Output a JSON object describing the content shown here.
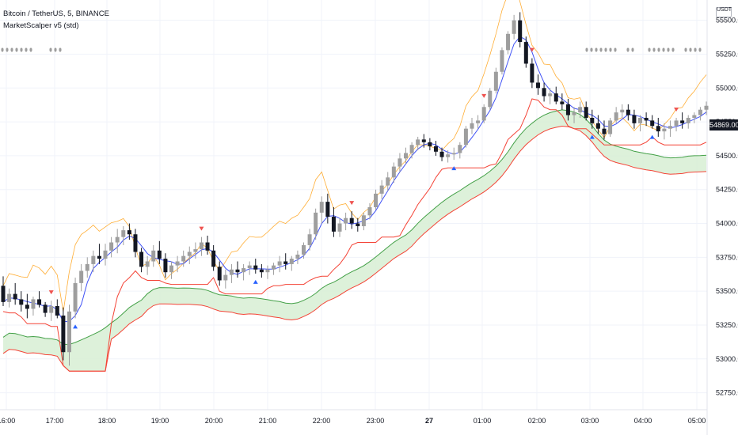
{
  "header": {
    "symbol_line": "Bitcoin / TetherUS, 5, BINANCE",
    "indicator_line": "MarketScalper v5 (std)"
  },
  "currency_button": "USDT",
  "last_price_label": "54869.00",
  "chart_data": {
    "type": "candlestick",
    "symbol": "Bitcoin / TetherUS",
    "interval": "5",
    "exchange": "BINANCE",
    "indicator": "MarketScalper v5 (std)",
    "y_ticks": [
      "55500.00",
      "55250.00",
      "55000.00",
      "54750.00",
      "54500.00",
      "54250.00",
      "54000.00",
      "53750.00",
      "53500.00",
      "53250.00",
      "53000.00",
      "52750.00"
    ],
    "y_tick_values": [
      55500,
      55250,
      55000,
      54750,
      54500,
      54250,
      54000,
      53750,
      53500,
      53250,
      53000,
      52750
    ],
    "ylim": [
      52625,
      55650
    ],
    "x_ticks": [
      "16:00",
      "17:00",
      "18:00",
      "19:00",
      "20:00",
      "21:00",
      "22:00",
      "23:00",
      "27",
      "01:00",
      "02:00",
      "03:00",
      "04:00",
      "05:00"
    ],
    "bar_minutes": 5,
    "last_price": 54869,
    "ohlc_samples": [
      [
        53540,
        53610,
        53390,
        53420
      ],
      [
        53420,
        53520,
        53380,
        53480
      ],
      [
        53480,
        53560,
        53400,
        53440
      ],
      [
        53440,
        53500,
        53350,
        53400
      ],
      [
        53400,
        53480,
        53300,
        53370
      ],
      [
        53370,
        53460,
        53320,
        53440
      ],
      [
        53440,
        53500,
        53380,
        53400
      ],
      [
        53400,
        53420,
        53310,
        53340
      ],
      [
        53340,
        53430,
        53280,
        53390
      ],
      [
        53390,
        53440,
        53300,
        53320
      ],
      [
        53320,
        53380,
        52990,
        53050
      ],
      [
        53050,
        53400,
        52950,
        53350
      ],
      [
        53350,
        53600,
        53300,
        53560
      ],
      [
        53560,
        53700,
        53500,
        53650
      ],
      [
        53650,
        53750,
        53600,
        53700
      ],
      [
        53700,
        53800,
        53640,
        53760
      ],
      [
        53760,
        53850,
        53700,
        53740
      ],
      [
        53740,
        53850,
        53690,
        53800
      ],
      [
        53800,
        53900,
        53750,
        53860
      ],
      [
        53860,
        53960,
        53780,
        53900
      ],
      [
        53900,
        53980,
        53840,
        53950
      ],
      [
        53950,
        54000,
        53880,
        53920
      ],
      [
        53920,
        53960,
        53750,
        53790
      ],
      [
        53790,
        53820,
        53640,
        53680
      ],
      [
        53680,
        53760,
        53620,
        53720
      ],
      [
        53720,
        53840,
        53680,
        53800
      ],
      [
        53800,
        53870,
        53700,
        53740
      ],
      [
        53740,
        53780,
        53600,
        53640
      ],
      [
        53640,
        53720,
        53590,
        53690
      ],
      [
        53690,
        53760,
        53640,
        53720
      ],
      [
        53720,
        53800,
        53680,
        53760
      ],
      [
        53760,
        53830,
        53700,
        53790
      ],
      [
        53790,
        53860,
        53740,
        53810
      ],
      [
        53810,
        53900,
        53760,
        53860
      ],
      [
        53860,
        53910,
        53770,
        53800
      ],
      [
        53800,
        53840,
        53650,
        53680
      ],
      [
        53680,
        53720,
        53540,
        53580
      ],
      [
        53580,
        53660,
        53520,
        53620
      ],
      [
        53620,
        53700,
        53560,
        53660
      ],
      [
        53660,
        53720,
        53600,
        53640
      ],
      [
        53640,
        53700,
        53580,
        53670
      ],
      [
        53670,
        53720,
        53620,
        53690
      ],
      [
        53690,
        53740,
        53630,
        53660
      ],
      [
        53660,
        53700,
        53600,
        53640
      ],
      [
        53640,
        53690,
        53590,
        53660
      ],
      [
        53660,
        53710,
        53620,
        53690
      ],
      [
        53690,
        53760,
        53640,
        53720
      ],
      [
        53720,
        53780,
        53660,
        53700
      ],
      [
        53700,
        53760,
        53650,
        53740
      ],
      [
        53740,
        53800,
        53700,
        53770
      ],
      [
        53770,
        53860,
        53740,
        53840
      ],
      [
        53840,
        53960,
        53800,
        53920
      ],
      [
        53920,
        54110,
        53880,
        54080
      ],
      [
        54080,
        54200,
        54000,
        54160
      ],
      [
        54160,
        54220,
        54000,
        54050
      ],
      [
        54050,
        54120,
        53900,
        53940
      ],
      [
        53940,
        54040,
        53900,
        54000
      ],
      [
        54000,
        54080,
        53950,
        54040
      ],
      [
        54040,
        54090,
        53960,
        54000
      ],
      [
        54000,
        54040,
        53940,
        53980
      ],
      [
        53980,
        54080,
        53950,
        54060
      ],
      [
        54060,
        54150,
        54030,
        54120
      ],
      [
        54120,
        54250,
        54100,
        54220
      ],
      [
        54220,
        54320,
        54180,
        54280
      ],
      [
        54280,
        54380,
        54240,
        54340
      ],
      [
        54340,
        54450,
        54300,
        54420
      ],
      [
        54420,
        54520,
        54380,
        54480
      ],
      [
        54480,
        54560,
        54440,
        54520
      ],
      [
        54520,
        54600,
        54480,
        54580
      ],
      [
        54580,
        54640,
        54540,
        54620
      ],
      [
        54620,
        54660,
        54560,
        54600
      ],
      [
        54600,
        54630,
        54540,
        54570
      ],
      [
        54570,
        54610,
        54500,
        54530
      ],
      [
        54530,
        54560,
        54460,
        54490
      ],
      [
        54490,
        54540,
        54450,
        54510
      ],
      [
        54510,
        54560,
        54470,
        54520
      ],
      [
        54520,
        54600,
        54480,
        54580
      ],
      [
        54580,
        54720,
        54560,
        54700
      ],
      [
        54700,
        54780,
        54660,
        54740
      ],
      [
        54740,
        54800,
        54700,
        54760
      ],
      [
        54760,
        54880,
        54740,
        54860
      ],
      [
        54860,
        55000,
        54840,
        54980
      ],
      [
        54980,
        55150,
        54960,
        55120
      ],
      [
        55120,
        55300,
        55100,
        55280
      ],
      [
        55280,
        55420,
        55250,
        55400
      ],
      [
        55400,
        55540,
        55360,
        55500
      ],
      [
        55500,
        55560,
        55300,
        55340
      ],
      [
        55340,
        55380,
        55150,
        55180
      ],
      [
        55180,
        55220,
        55000,
        55040
      ],
      [
        55040,
        55100,
        54950,
        55000
      ],
      [
        55000,
        55040,
        54900,
        54940
      ],
      [
        54940,
        55000,
        54880,
        54960
      ],
      [
        54960,
        55010,
        54880,
        54900
      ],
      [
        54900,
        54960,
        54840,
        54880
      ],
      [
        54880,
        54920,
        54760,
        54800
      ],
      [
        54800,
        54860,
        54740,
        54820
      ],
      [
        54820,
        54900,
        54780,
        54860
      ],
      [
        54860,
        54900,
        54760,
        54780
      ],
      [
        54780,
        54840,
        54700,
        54740
      ],
      [
        54740,
        54800,
        54660,
        54700
      ],
      [
        54700,
        54760,
        54620,
        54660
      ],
      [
        54660,
        54780,
        54640,
        54760
      ],
      [
        54760,
        54860,
        54740,
        54820
      ],
      [
        54820,
        54880,
        54780,
        54840
      ],
      [
        54840,
        54880,
        54760,
        54800
      ],
      [
        54800,
        54840,
        54700,
        54740
      ],
      [
        54740,
        54800,
        54680,
        54780
      ],
      [
        54780,
        54820,
        54720,
        54760
      ],
      [
        54760,
        54800,
        54700,
        54720
      ],
      [
        54720,
        54780,
        54640,
        54680
      ],
      [
        54680,
        54740,
        54620,
        54700
      ],
      [
        54700,
        54760,
        54640,
        54720
      ],
      [
        54720,
        54780,
        54680,
        54760
      ],
      [
        54760,
        54820,
        54700,
        54740
      ],
      [
        54740,
        54800,
        54700,
        54780
      ],
      [
        54780,
        54820,
        54740,
        54800
      ],
      [
        54800,
        54860,
        54760,
        54840
      ],
      [
        54840,
        54900,
        54800,
        54869
      ]
    ]
  },
  "markers": {
    "note": "triangle signals",
    "sell_color": "#ef5350",
    "buy_color": "#2962ff"
  },
  "colors": {
    "up_candle": "#9e9e9e",
    "down_candle": "#131722",
    "blue_line": "#3f51f5",
    "red_line": "#f44336",
    "orange_line": "#ff9800",
    "green_line": "#43a047",
    "cloud_fill": "#d9f0d6",
    "grid": "#f0f3fa",
    "axis_text": "#131722"
  }
}
